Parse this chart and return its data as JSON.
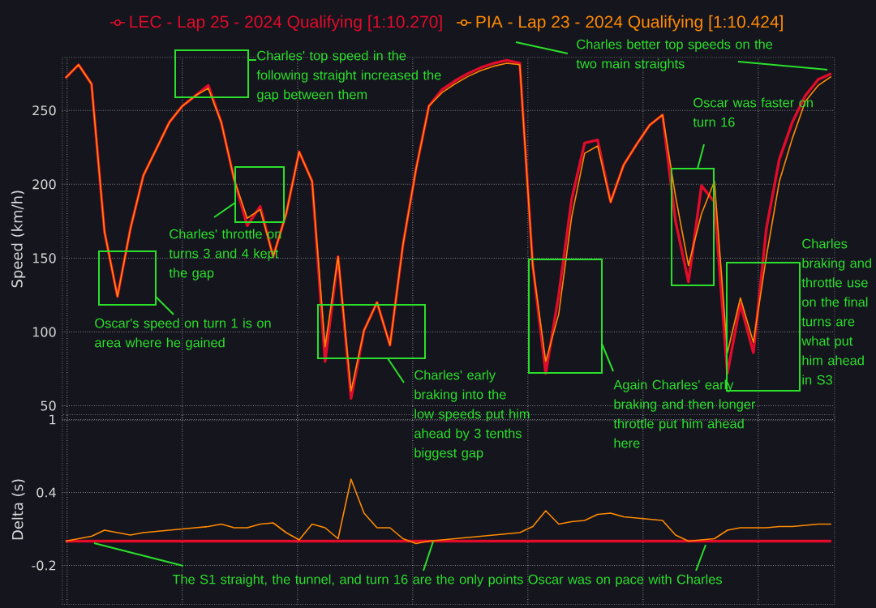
{
  "chart_data": [
    {
      "type": "line",
      "ylabel": "Speed (km/h)",
      "categories": [
        null,
        null,
        null,
        null,
        null,
        null,
        null,
        null,
        null,
        null,
        null,
        null,
        null,
        null,
        null,
        null,
        null,
        null,
        null,
        null,
        null,
        null,
        null,
        null,
        null,
        null,
        null,
        null,
        null,
        null,
        null,
        null,
        null,
        null,
        null,
        null,
        null,
        null,
        null,
        null,
        null,
        null,
        null,
        null,
        null,
        null,
        null,
        null,
        null,
        null,
        null,
        null,
        null,
        null,
        null,
        null,
        null,
        null,
        null,
        null
      ],
      "ylim": [
        40,
        286
      ],
      "yticks": [
        50,
        100,
        150,
        200,
        250
      ],
      "grid": true,
      "legend": "top",
      "tick_labels": "y",
      "series": [
        {
          "name": "LEC - Lap 25 - 2024 Qualifying [1:10.270]",
          "color": "#e10b2a",
          "values": [
            272,
            281,
            268,
            168,
            124,
            170,
            206,
            224,
            242,
            253,
            260,
            267,
            242,
            203,
            172,
            185,
            151,
            180,
            222,
            202,
            80,
            151,
            55,
            101,
            120,
            91,
            159,
            210,
            253,
            264,
            270,
            275,
            279,
            282,
            284,
            282,
            145,
            72,
            125,
            190,
            228,
            230,
            188,
            213,
            227,
            240,
            247,
            175,
            134,
            199,
            188,
            72,
            119,
            86,
            170,
            217,
            242,
            260,
            271,
            275
          ]
        },
        {
          "name": "PIA - Lap 23 - 2024 Qualifying [1:10.424]",
          "color": "#ff8a00",
          "values": [
            272,
            281,
            268,
            168,
            124,
            170,
            206,
            224,
            242,
            253,
            260,
            265,
            242,
            203,
            177,
            183,
            151,
            180,
            222,
            202,
            90,
            151,
            60,
            101,
            120,
            91,
            159,
            210,
            253,
            262,
            268,
            273,
            277,
            280,
            282,
            281,
            145,
            80,
            112,
            178,
            221,
            226,
            188,
            213,
            227,
            240,
            247,
            192,
            145,
            180,
            202,
            86,
            123,
            93,
            151,
            202,
            231,
            256,
            267,
            273
          ]
        }
      ],
      "annotations": [
        "Charles' top speed in the following straight increased the gap between them",
        "Charles' throttle on turns 3 and 4 kept the gap",
        "Oscar's speed on turn 1 is on area where he gained",
        "Charles' early braking into the low speeds put him ahead by 3 tenths biggest gap",
        "Charles better top speeds on the two main straights",
        "Oscar was faster on turn 16",
        "Again Charles' early braking and then longer throttle put him ahead here",
        "Charles braking and throttle use on the final turns are what put him ahead in S3"
      ]
    },
    {
      "type": "line",
      "ylabel": "Delta (s)",
      "categories": [
        null,
        null,
        null,
        null,
        null,
        null,
        null,
        null,
        null,
        null,
        null,
        null,
        null,
        null,
        null,
        null,
        null,
        null,
        null,
        null,
        null,
        null,
        null,
        null,
        null,
        null,
        null,
        null,
        null,
        null,
        null,
        null,
        null,
        null,
        null,
        null,
        null,
        null,
        null,
        null,
        null,
        null,
        null,
        null,
        null,
        null,
        null,
        null,
        null,
        null,
        null,
        null,
        null,
        null,
        null,
        null,
        null,
        null,
        null,
        null
      ],
      "ylim": [
        -0.52,
        1.04
      ],
      "yticks": [
        -0.2,
        0.4,
        1
      ],
      "grid": true,
      "tick_labels": "y",
      "series": [
        {
          "color": "#e10b2a",
          "values": [
            0,
            0,
            0,
            0,
            0,
            0,
            0,
            0,
            0,
            0,
            0,
            0,
            0,
            0,
            0,
            0,
            0,
            0,
            0,
            0,
            0,
            0,
            0,
            0,
            0,
            0,
            0,
            0,
            0,
            0,
            0,
            0,
            0,
            0,
            0,
            0,
            0,
            0,
            0,
            0,
            0,
            0,
            0,
            0,
            0,
            0,
            0,
            0,
            0,
            0,
            0,
            0,
            0,
            0,
            0,
            0,
            0,
            0,
            0,
            0
          ]
        },
        {
          "color": "#ff8a00",
          "values": [
            0.0,
            0.02,
            0.04,
            0.09,
            0.07,
            0.05,
            0.07,
            0.08,
            0.09,
            0.1,
            0.11,
            0.12,
            0.14,
            0.11,
            0.11,
            0.14,
            0.15,
            0.07,
            0.01,
            0.14,
            0.11,
            0.02,
            0.51,
            0.23,
            0.11,
            0.11,
            0.02,
            -0.02,
            0.0,
            0.01,
            0.02,
            0.03,
            0.04,
            0.05,
            0.06,
            0.07,
            0.12,
            0.25,
            0.14,
            0.16,
            0.17,
            0.22,
            0.23,
            0.2,
            0.19,
            0.18,
            0.17,
            0.05,
            0.0,
            0.01,
            0.02,
            0.09,
            0.11,
            0.11,
            0.11,
            0.12,
            0.12,
            0.13,
            0.14,
            0.14
          ]
        }
      ],
      "annotations": [
        "The S1 straight, the tunnel, and turn 16 are the only points Oscar was on pace with Charles"
      ]
    }
  ]
}
